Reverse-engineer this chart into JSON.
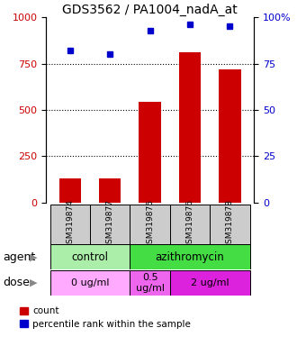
{
  "title": "GDS3562 / PA1004_nadA_at",
  "samples": [
    "GSM319874",
    "GSM319877",
    "GSM319875",
    "GSM319876",
    "GSM319878"
  ],
  "bar_values": [
    130,
    130,
    545,
    810,
    720
  ],
  "dot_values": [
    82,
    80,
    93,
    96,
    95
  ],
  "ylim_left": [
    0,
    1000
  ],
  "ylim_right": [
    0,
    100
  ],
  "yticks_left": [
    0,
    250,
    500,
    750,
    1000
  ],
  "yticks_right": [
    0,
    25,
    50,
    75,
    100
  ],
  "bar_color": "#cc0000",
  "dot_color": "#0000cc",
  "agent_groups": [
    {
      "label": "control",
      "span": [
        0,
        2
      ],
      "color": "#aaeeaa"
    },
    {
      "label": "azithromycin",
      "span": [
        2,
        5
      ],
      "color": "#44dd44"
    }
  ],
  "dose_groups": [
    {
      "label": "0 ug/ml",
      "span": [
        0,
        2
      ],
      "color": "#ffaaff"
    },
    {
      "label": "0.5\nug/ml",
      "span": [
        2,
        3
      ],
      "color": "#ee66ee"
    },
    {
      "label": "2 ug/ml",
      "span": [
        3,
        5
      ],
      "color": "#dd22dd"
    }
  ],
  "tick_label_color_left": "#cc0000",
  "tick_label_color_right": "#0000cc",
  "agent_label": "agent",
  "dose_label": "dose",
  "legend_count_label": "count",
  "legend_pct_label": "percentile rank within the sample"
}
